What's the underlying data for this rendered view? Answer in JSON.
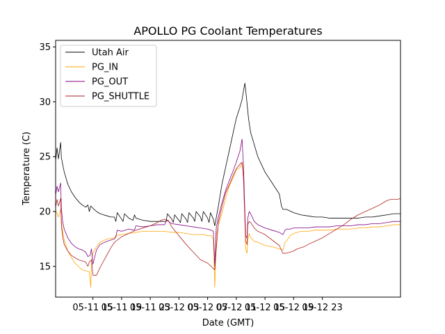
{
  "chart_data": {
    "type": "line",
    "title": "APOLLO PG Coolant Temperatures",
    "xlabel": "Date (GMT)",
    "ylabel": "Temperature (C)",
    "xlim": [
      9.8,
      57.9
    ],
    "ylim": [
      12.2,
      35.6
    ],
    "x_unit": "hours since 05-11 00:00 GMT",
    "xticks": [
      {
        "value": 15,
        "label": "05-11 15"
      },
      {
        "value": 19,
        "label": "05-11 19"
      },
      {
        "value": 23,
        "label": "05-11 23"
      },
      {
        "value": 27,
        "label": "05-12 03"
      },
      {
        "value": 31,
        "label": "05-12 07"
      },
      {
        "value": 35,
        "label": "05-12 11"
      },
      {
        "value": 39,
        "label": "05-12 15"
      },
      {
        "value": 43,
        "label": "05-12 19"
      },
      {
        "value": 47,
        "label": "05-12 23"
      }
    ],
    "yticks": [
      {
        "value": 15,
        "label": "15"
      },
      {
        "value": 20,
        "label": "20"
      },
      {
        "value": 25,
        "label": "25"
      },
      {
        "value": 30,
        "label": "30"
      },
      {
        "value": 35,
        "label": "35"
      }
    ],
    "legend_position": "top-left",
    "series": [
      {
        "name": "Utah Air",
        "color": "#000000",
        "x": [
          9.8,
          10.0,
          10.2,
          10.4,
          10.5,
          10.6,
          11.0,
          11.5,
          12.0,
          12.5,
          13.0,
          13.5,
          14.0,
          14.3,
          14.5,
          14.7,
          15.0,
          15.5,
          16.0,
          16.5,
          17.0,
          17.5,
          18.0,
          18.2,
          18.4,
          19.0,
          19.2,
          19.4,
          20.0,
          20.6,
          20.8,
          21.0,
          22.0,
          23.0,
          24.0,
          25.0,
          25.2,
          25.4,
          26.0,
          26.2,
          26.4,
          27.0,
          27.2,
          27.4,
          28.0,
          28.2,
          28.4,
          29.0,
          29.2,
          29.4,
          30.0,
          30.2,
          30.4,
          31.0,
          31.2,
          31.4,
          31.8,
          32.0,
          32.5,
          33.0,
          33.5,
          34.0,
          34.5,
          35.0,
          35.5,
          35.8,
          36.0,
          36.2,
          36.4,
          36.7,
          37.0,
          38.0,
          39.0,
          40.0,
          41.0,
          41.3,
          41.5,
          42.0,
          43.0,
          44.0,
          45.0,
          46.0,
          47.0,
          48.0,
          49.0,
          50.0,
          51.0,
          52.0,
          53.0,
          54.0,
          55.0,
          56.0,
          57.0,
          57.9
        ],
        "y": [
          24.6,
          25.8,
          24.8,
          25.8,
          26.3,
          24.9,
          23.6,
          22.5,
          21.8,
          21.3,
          20.9,
          20.6,
          20.4,
          20.6,
          20.0,
          20.5,
          20.3,
          20.0,
          19.8,
          19.7,
          19.6,
          19.5,
          19.5,
          19.1,
          19.9,
          19.3,
          19.1,
          19.8,
          19.4,
          19.2,
          19.7,
          19.4,
          19.2,
          19.1,
          19.1,
          19.1,
          19.1,
          19.8,
          19.3,
          19.0,
          19.7,
          19.2,
          19.0,
          19.8,
          19.3,
          19.0,
          19.9,
          19.4,
          19.1,
          20.0,
          19.5,
          19.1,
          20.0,
          19.4,
          19.0,
          19.9,
          19.3,
          18.7,
          20.5,
          22.5,
          24.0,
          25.5,
          27.0,
          28.5,
          29.5,
          30.2,
          31.0,
          31.7,
          30.5,
          28.5,
          27.2,
          25.0,
          23.6,
          22.6,
          21.6,
          20.5,
          20.2,
          20.2,
          19.9,
          19.7,
          19.6,
          19.5,
          19.5,
          19.4,
          19.4,
          19.4,
          19.4,
          19.4,
          19.5,
          19.5,
          19.6,
          19.7,
          19.8,
          19.8
        ]
      },
      {
        "name": "PG_IN",
        "color": "#ffa500",
        "x": [
          9.8,
          10.2,
          10.5,
          10.7,
          11.0,
          11.5,
          12.0,
          12.5,
          13.0,
          13.3,
          13.5,
          14.0,
          14.5,
          14.7,
          14.8,
          15.0,
          15.5,
          16.0,
          17.0,
          18.0,
          18.2,
          19.0,
          20.0,
          21.0,
          22.0,
          23.0,
          24.0,
          25.0,
          26.0,
          27.0,
          28.0,
          29.0,
          30.0,
          30.5,
          31.0,
          31.5,
          31.8,
          32.0,
          32.2,
          32.5,
          33.0,
          33.5,
          34.0,
          34.5,
          35.0,
          35.5,
          35.8,
          36.0,
          36.3,
          36.5,
          36.6,
          36.8,
          37.0,
          37.5,
          38.0,
          39.0,
          40.0,
          41.0,
          41.5,
          41.8,
          42.0,
          42.5,
          43.0,
          43.5,
          44.0,
          45.0,
          46.0,
          47.0,
          48.0,
          49.0,
          50.0,
          51.0,
          52.0,
          53.0,
          54.0,
          55.0,
          56.0,
          57.0,
          57.9
        ],
        "y": [
          20.1,
          19.5,
          20.2,
          18.5,
          17.4,
          16.4,
          15.8,
          15.3,
          15.0,
          14.8,
          14.7,
          14.6,
          14.5,
          13.1,
          15.4,
          16.2,
          16.8,
          17.2,
          17.5,
          17.6,
          17.8,
          17.9,
          18.0,
          18.1,
          18.2,
          18.2,
          18.2,
          18.2,
          18.1,
          18.1,
          18.0,
          17.9,
          17.9,
          17.9,
          17.8,
          17.8,
          17.5,
          13.1,
          17.8,
          18.8,
          19.8,
          21.2,
          22.3,
          23.0,
          23.8,
          24.0,
          24.4,
          23.8,
          16.6,
          16.2,
          17.4,
          18.0,
          17.6,
          17.3,
          17.2,
          16.9,
          16.8,
          16.6,
          16.5,
          17.2,
          17.3,
          17.8,
          18.0,
          18.1,
          18.2,
          18.2,
          18.3,
          18.3,
          18.3,
          18.4,
          18.4,
          18.4,
          18.5,
          18.5,
          18.6,
          18.6,
          18.7,
          18.8,
          18.8
        ]
      },
      {
        "name": "PG_OUT",
        "color": "#800080",
        "x": [
          9.8,
          10.0,
          10.2,
          10.5,
          10.6,
          10.8,
          11.0,
          11.5,
          12.0,
          12.5,
          13.0,
          13.5,
          14.0,
          14.3,
          14.6,
          14.8,
          15.0,
          15.5,
          16.0,
          17.0,
          18.0,
          18.2,
          18.4,
          19.0,
          20.0,
          20.8,
          21.0,
          22.0,
          23.0,
          24.0,
          25.0,
          25.3,
          26.0,
          27.0,
          28.0,
          29.0,
          30.0,
          31.0,
          31.5,
          31.8,
          32.0,
          32.2,
          32.5,
          33.0,
          33.5,
          34.0,
          34.5,
          35.0,
          35.5,
          35.8,
          36.0,
          36.3,
          36.5,
          36.6,
          36.8,
          37.0,
          37.5,
          38.0,
          39.0,
          40.0,
          41.0,
          41.5,
          41.8,
          42.0,
          42.5,
          43.0,
          43.5,
          44.0,
          45.0,
          46.0,
          47.0,
          48.0,
          49.0,
          50.0,
          51.0,
          52.0,
          53.0,
          54.0,
          55.0,
          56.0,
          57.0,
          57.9
        ],
        "y": [
          21.5,
          22.3,
          21.8,
          22.6,
          20.3,
          19.0,
          18.4,
          17.6,
          17.1,
          16.8,
          16.6,
          16.5,
          16.3,
          15.9,
          16.0,
          16.6,
          15.2,
          16.5,
          17.0,
          17.3,
          17.5,
          17.7,
          18.3,
          18.2,
          18.4,
          18.3,
          18.7,
          18.6,
          18.7,
          18.8,
          18.8,
          19.2,
          18.9,
          18.8,
          18.7,
          18.6,
          18.5,
          18.4,
          18.3,
          18.2,
          15.0,
          18.5,
          19.5,
          20.8,
          21.9,
          22.8,
          23.6,
          24.5,
          25.5,
          26.6,
          24.2,
          17.8,
          17.6,
          19.4,
          20.0,
          19.8,
          19.1,
          18.8,
          18.5,
          18.3,
          18.1,
          17.9,
          18.3,
          18.4,
          18.4,
          18.5,
          18.5,
          18.5,
          18.5,
          18.6,
          18.6,
          18.6,
          18.7,
          18.7,
          18.7,
          18.8,
          18.8,
          18.9,
          18.9,
          19.0,
          19.1,
          19.1
        ]
      },
      {
        "name": "PG_SHUTTLE",
        "color": "#b22222",
        "x": [
          9.8,
          10.0,
          10.2,
          10.5,
          10.6,
          10.8,
          11.0,
          11.5,
          12.0,
          12.5,
          13.0,
          13.5,
          14.0,
          14.3,
          14.5,
          14.8,
          15.0,
          15.5,
          16.0,
          16.5,
          17.0,
          17.5,
          18.0,
          19.0,
          20.0,
          21.0,
          22.0,
          23.0,
          24.0,
          24.5,
          25.0,
          25.5,
          26.0,
          27.0,
          28.0,
          29.0,
          30.0,
          31.0,
          31.5,
          31.8,
          32.0,
          32.2,
          32.5,
          33.0,
          33.5,
          34.0,
          34.5,
          35.0,
          35.5,
          35.8,
          36.0,
          36.3,
          36.5,
          36.6,
          36.8,
          37.0,
          37.5,
          38.0,
          39.0,
          40.0,
          41.0,
          41.5,
          42.0,
          42.5,
          43.0,
          43.5,
          44.0,
          44.5,
          45.0,
          46.0,
          47.0,
          48.0,
          49.0,
          50.0,
          51.0,
          52.0,
          53.0,
          54.0,
          55.0,
          55.5,
          56.0,
          56.5,
          57.0,
          57.5,
          57.9
        ],
        "y": [
          20.4,
          21.1,
          20.5,
          21.2,
          18.8,
          17.6,
          17.0,
          16.4,
          16.0,
          15.8,
          15.6,
          15.5,
          15.4,
          15.0,
          15.4,
          15.6,
          14.2,
          14.2,
          14.9,
          15.5,
          16.1,
          16.7,
          17.2,
          17.7,
          18.0,
          18.3,
          18.5,
          18.7,
          19.0,
          19.2,
          19.3,
          19.2,
          18.6,
          17.8,
          17.0,
          16.3,
          15.6,
          15.3,
          15.0,
          14.8,
          14.7,
          16.5,
          19.0,
          20.4,
          21.7,
          22.4,
          23.2,
          23.9,
          24.3,
          24.5,
          23.0,
          17.3,
          17.0,
          18.8,
          19.1,
          19.0,
          18.5,
          18.2,
          17.9,
          17.4,
          16.9,
          16.2,
          16.2,
          16.3,
          16.4,
          16.6,
          16.7,
          16.8,
          17.0,
          17.3,
          17.6,
          18.0,
          18.4,
          18.8,
          19.3,
          19.7,
          20.0,
          20.3,
          20.6,
          20.8,
          21.0,
          21.1,
          21.1,
          21.1,
          21.2
        ]
      }
    ]
  }
}
